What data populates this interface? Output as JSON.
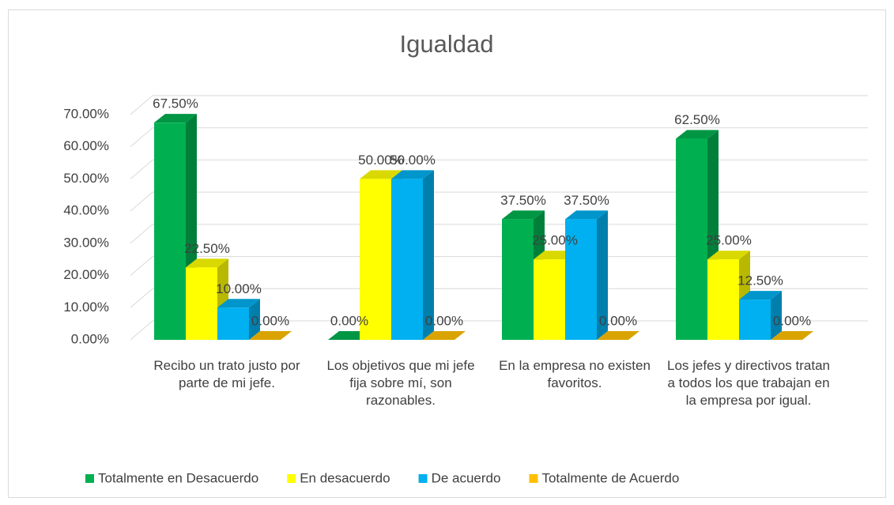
{
  "chart_data": {
    "type": "bar3d",
    "title": "Igualdad",
    "categories": [
      "Recibo un trato justo por parte de mi jefe.",
      "Los objetivos que mi jefe fija sobre mí, son razonables.",
      "En la empresa no existen favoritos.",
      "Los jefes y directivos tratan a todos los que trabajan en la empresa por igual."
    ],
    "series": [
      {
        "name": "Totalmente en Desacuerdo",
        "color": "#00b050",
        "values": [
          67.5,
          0,
          37.5,
          62.5
        ],
        "value_labels": [
          "67.50%",
          "0.00%",
          "37.50%",
          "62.50%"
        ]
      },
      {
        "name": "En desacuerdo",
        "color": "#ffff00",
        "values": [
          22.5,
          50,
          25,
          25
        ],
        "value_labels": [
          "22.50%",
          "50.00%",
          "25.00%",
          "25.00%"
        ]
      },
      {
        "name": "De acuerdo",
        "color": "#00b0f0",
        "values": [
          10,
          50,
          37.5,
          12.5
        ],
        "value_labels": [
          "10.00%",
          "50.00%",
          "37.50%",
          "12.50%"
        ]
      },
      {
        "name": "Totalmente de Acuerdo",
        "color": "#ffc000",
        "values": [
          0,
          0,
          0,
          0
        ],
        "value_labels": [
          "0.00%",
          "0.00%",
          "0.00%",
          "0.00%"
        ]
      }
    ],
    "ylim": [
      0,
      70
    ],
    "yticks": [
      {
        "value": 0,
        "label": "0.00%"
      },
      {
        "value": 10,
        "label": "10.00%"
      },
      {
        "value": 20,
        "label": "20.00%"
      },
      {
        "value": 30,
        "label": "30.00%"
      },
      {
        "value": 40,
        "label": "40.00%"
      },
      {
        "value": 50,
        "label": "50.00%"
      },
      {
        "value": 60,
        "label": "60.00%"
      },
      {
        "value": 70,
        "label": "70.00%"
      }
    ],
    "grid": true,
    "legend": "bottom"
  }
}
